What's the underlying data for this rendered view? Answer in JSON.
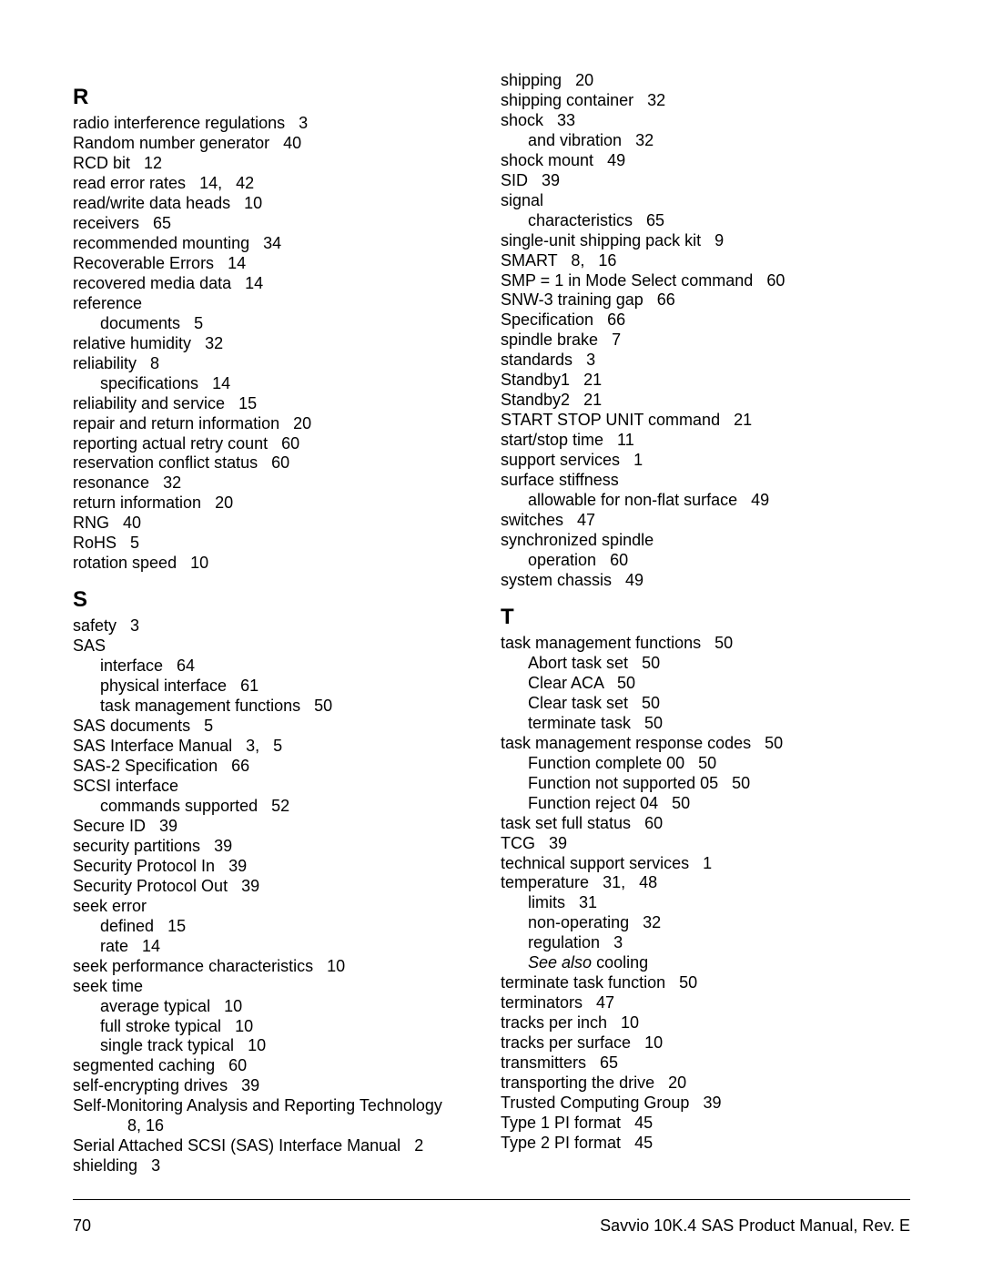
{
  "left_column": [
    {
      "type": "section",
      "label": "R"
    },
    {
      "type": "entry",
      "label": "radio interference regulations",
      "pages": "3"
    },
    {
      "type": "entry",
      "label": "Random number generator",
      "pages": "40"
    },
    {
      "type": "entry",
      "label": "RCD bit",
      "pages": "12"
    },
    {
      "type": "entry",
      "label": "read error rates",
      "pages": "14,   42"
    },
    {
      "type": "entry",
      "label": "read/write data heads",
      "pages": "10"
    },
    {
      "type": "entry",
      "label": "receivers",
      "pages": "65"
    },
    {
      "type": "entry",
      "label": "recommended mounting",
      "pages": "34"
    },
    {
      "type": "entry",
      "label": "Recoverable Errors",
      "pages": "14"
    },
    {
      "type": "entry",
      "label": "recovered media data",
      "pages": "14"
    },
    {
      "type": "entry",
      "label": "reference"
    },
    {
      "type": "entry",
      "indent": 1,
      "label": "documents",
      "pages": "5"
    },
    {
      "type": "entry",
      "label": "relative humidity",
      "pages": "32"
    },
    {
      "type": "entry",
      "label": "reliability",
      "pages": "8"
    },
    {
      "type": "entry",
      "indent": 1,
      "label": "specifications",
      "pages": "14"
    },
    {
      "type": "entry",
      "label": "reliability and service",
      "pages": "15"
    },
    {
      "type": "entry",
      "label": "repair and return information",
      "pages": "20"
    },
    {
      "type": "entry",
      "label": "reporting actual retry count",
      "pages": "60"
    },
    {
      "type": "entry",
      "label": "reservation conflict status",
      "pages": "60"
    },
    {
      "type": "entry",
      "label": "resonance",
      "pages": "32"
    },
    {
      "type": "entry",
      "label": "return information",
      "pages": "20"
    },
    {
      "type": "entry",
      "label": "RNG",
      "pages": "40"
    },
    {
      "type": "entry",
      "label": "RoHS",
      "pages": "5"
    },
    {
      "type": "entry",
      "label": "rotation speed",
      "pages": "10"
    },
    {
      "type": "section",
      "label": "S"
    },
    {
      "type": "entry",
      "label": "safety",
      "pages": "3"
    },
    {
      "type": "entry",
      "label": "SAS"
    },
    {
      "type": "entry",
      "indent": 1,
      "label": "interface",
      "pages": "64"
    },
    {
      "type": "entry",
      "indent": 1,
      "label": "physical interface",
      "pages": "61"
    },
    {
      "type": "entry",
      "indent": 1,
      "label": "task management functions",
      "pages": "50"
    },
    {
      "type": "entry",
      "label": "SAS documents",
      "pages": "5"
    },
    {
      "type": "entry",
      "label": "SAS Interface Manual",
      "pages": "3,   5"
    },
    {
      "type": "entry",
      "label": "SAS-2 Specification",
      "pages": "66"
    },
    {
      "type": "entry",
      "label": "SCSI interface"
    },
    {
      "type": "entry",
      "indent": 1,
      "label": "commands supported",
      "pages": "52"
    },
    {
      "type": "entry",
      "label": "Secure ID",
      "pages": "39"
    },
    {
      "type": "entry",
      "label": "security partitions",
      "pages": "39"
    },
    {
      "type": "entry",
      "label": "Security Protocol In",
      "pages": "39"
    },
    {
      "type": "entry",
      "label": "Security Protocol Out",
      "pages": "39"
    },
    {
      "type": "entry",
      "label": "seek error"
    },
    {
      "type": "entry",
      "indent": 1,
      "label": "defined",
      "pages": "15"
    },
    {
      "type": "entry",
      "indent": 1,
      "label": "rate",
      "pages": "14"
    },
    {
      "type": "entry",
      "label": "seek performance characteristics",
      "pages": "10"
    },
    {
      "type": "entry",
      "label": "seek time"
    },
    {
      "type": "entry",
      "indent": 1,
      "label": "average typical",
      "pages": "10"
    },
    {
      "type": "entry",
      "indent": 1,
      "label": "full stroke typical",
      "pages": "10"
    },
    {
      "type": "entry",
      "indent": 1,
      "label": "single track typical",
      "pages": "10"
    },
    {
      "type": "entry",
      "label": "segmented caching",
      "pages": "60"
    },
    {
      "type": "entry",
      "label": "self-encrypting drives",
      "pages": "39"
    },
    {
      "type": "entry",
      "label": "Self-Monitoring Analysis and Reporting Technology",
      "justify": true
    },
    {
      "type": "entry",
      "indent": 2,
      "label": "8,   16"
    },
    {
      "type": "entry",
      "label": "Serial Attached SCSI (SAS) Interface Manual",
      "pages": "2"
    },
    {
      "type": "entry",
      "label": "shielding",
      "pages": "3"
    }
  ],
  "right_column": [
    {
      "type": "entry",
      "label": "shipping",
      "pages": "20"
    },
    {
      "type": "entry",
      "label": "shipping container",
      "pages": "32"
    },
    {
      "type": "entry",
      "label": "shock",
      "pages": "33"
    },
    {
      "type": "entry",
      "indent": 1,
      "label": "and vibration",
      "pages": "32"
    },
    {
      "type": "entry",
      "label": "shock mount",
      "pages": "49"
    },
    {
      "type": "entry",
      "label": "SID",
      "pages": "39"
    },
    {
      "type": "entry",
      "label": "signal"
    },
    {
      "type": "entry",
      "indent": 1,
      "label": "characteristics",
      "pages": "65"
    },
    {
      "type": "entry",
      "label": "single-unit shipping pack kit",
      "pages": "9"
    },
    {
      "type": "entry",
      "label": "SMART",
      "pages": "8,   16"
    },
    {
      "type": "entry",
      "label": "SMP = 1 in Mode Select command",
      "pages": "60"
    },
    {
      "type": "entry",
      "label": "SNW-3 training gap",
      "pages": "66"
    },
    {
      "type": "entry",
      "label": "Specification",
      "pages": "66"
    },
    {
      "type": "entry",
      "label": "spindle brake",
      "pages": "7"
    },
    {
      "type": "entry",
      "label": "standards",
      "pages": "3"
    },
    {
      "type": "entry",
      "label": "Standby1",
      "pages": "21"
    },
    {
      "type": "entry",
      "label": "Standby2",
      "pages": "21"
    },
    {
      "type": "entry",
      "label": "START STOP UNIT command",
      "pages": "21"
    },
    {
      "type": "entry",
      "label": "start/stop time",
      "pages": "11"
    },
    {
      "type": "entry",
      "label": "support services",
      "pages": "1"
    },
    {
      "type": "entry",
      "label": "surface stiffness"
    },
    {
      "type": "entry",
      "indent": 1,
      "label": "allowable for non-flat surface",
      "pages": "49"
    },
    {
      "type": "entry",
      "label": "switches",
      "pages": "47"
    },
    {
      "type": "entry",
      "label": "synchronized spindle"
    },
    {
      "type": "entry",
      "indent": 1,
      "label": "operation",
      "pages": "60"
    },
    {
      "type": "entry",
      "label": "system chassis",
      "pages": "49"
    },
    {
      "type": "section",
      "label": "T"
    },
    {
      "type": "entry",
      "label": "task management functions",
      "pages": "50"
    },
    {
      "type": "entry",
      "indent": 1,
      "label": "Abort task set",
      "pages": "50"
    },
    {
      "type": "entry",
      "indent": 1,
      "label": "Clear ACA",
      "pages": "50"
    },
    {
      "type": "entry",
      "indent": 1,
      "label": "Clear task set",
      "pages": "50"
    },
    {
      "type": "entry",
      "indent": 1,
      "label": "terminate task",
      "pages": "50"
    },
    {
      "type": "entry",
      "label": "task management response codes",
      "pages": "50"
    },
    {
      "type": "entry",
      "indent": 1,
      "label": "Function complete 00",
      "pages": "50"
    },
    {
      "type": "entry",
      "indent": 1,
      "label": "Function not supported 05",
      "pages": "50"
    },
    {
      "type": "entry",
      "indent": 1,
      "label": "Function reject 04",
      "pages": "50"
    },
    {
      "type": "entry",
      "label": "task set full status",
      "pages": "60"
    },
    {
      "type": "entry",
      "label": "TCG",
      "pages": "39"
    },
    {
      "type": "entry",
      "label": "technical support services",
      "pages": "1"
    },
    {
      "type": "entry",
      "label": "temperature",
      "pages": "31,   48"
    },
    {
      "type": "entry",
      "indent": 1,
      "label": "limits",
      "pages": "31"
    },
    {
      "type": "entry",
      "indent": 1,
      "label": "non-operating",
      "pages": "32"
    },
    {
      "type": "entry",
      "indent": 1,
      "label": "regulation",
      "pages": "3"
    },
    {
      "type": "entry",
      "indent": 1,
      "italic": true,
      "label": "See also cooling"
    },
    {
      "type": "entry",
      "label": "terminate task function",
      "pages": "50"
    },
    {
      "type": "entry",
      "label": "terminators",
      "pages": "47"
    },
    {
      "type": "entry",
      "label": "tracks per inch",
      "pages": "10"
    },
    {
      "type": "entry",
      "label": "tracks per surface",
      "pages": "10"
    },
    {
      "type": "entry",
      "label": "transmitters",
      "pages": "65"
    },
    {
      "type": "entry",
      "label": "transporting the drive",
      "pages": "20"
    },
    {
      "type": "entry",
      "label": "Trusted Computing Group",
      "pages": "39"
    },
    {
      "type": "entry",
      "label": "Type 1 PI format",
      "pages": "45"
    },
    {
      "type": "entry",
      "label": "Type 2 PI format",
      "pages": "45"
    }
  ],
  "footer": {
    "page_number": "70",
    "doc_title": "Savvio 10K.4 SAS Product Manual, Rev. E"
  }
}
